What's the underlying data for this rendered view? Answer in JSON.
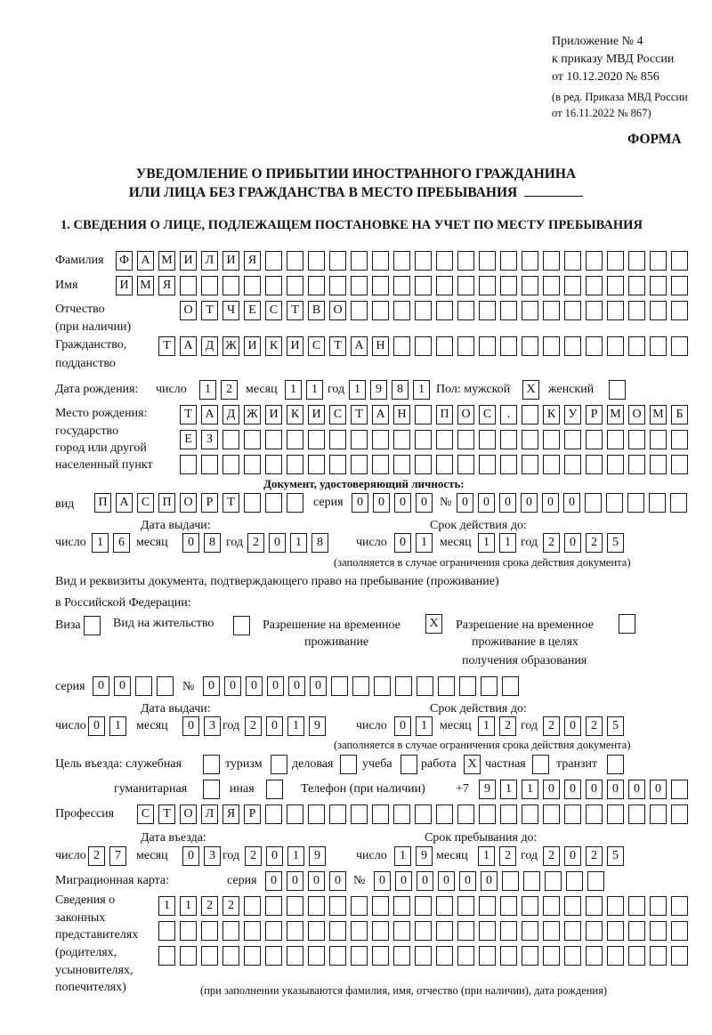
{
  "header": {
    "appendix": [
      "Приложение № 4",
      "к приказу МВД России",
      "от 10.12.2020 № 856"
    ],
    "revision": [
      "(в ред. Приказа МВД России",
      "от 16.11.2022 № 867)"
    ],
    "form_label": "ФОРМА",
    "title_line1": "УВЕДОМЛЕНИЕ О ПРИБЫТИИ ИНОСТРАННОГО ГРАЖДАНИНА",
    "title_line2": "ИЛИ ЛИЦА БЕЗ ГРАЖДАНСТВА В МЕСТО ПРЕБЫВАНИЯ",
    "section1": "1. СВЕДЕНИЯ О ЛИЦЕ, ПОДЛЕЖАЩЕМ ПОСТАНОВКЕ НА УЧЕТ ПО МЕСТУ ПРЕБЫВАНИЯ"
  },
  "labels": {
    "day": "число",
    "month": "месяц",
    "year": "год",
    "series": "серия",
    "number": "№",
    "note_validity": "(заполняется в случае ограничения срока действия документа)",
    "issue_date": "Дата выдачи:",
    "valid_until": "Срок действия до:"
  },
  "person": {
    "surname": {
      "label": "Фамилия",
      "cells": [
        "Ф",
        "А",
        "М",
        "И",
        "Л",
        "И",
        "Я",
        "",
        "",
        "",
        "",
        "",
        "",
        "",
        "",
        "",
        "",
        "",
        "",
        "",
        "",
        "",
        "",
        "",
        "",
        "",
        ""
      ]
    },
    "name": {
      "label": "Имя",
      "cells": [
        "И",
        "М",
        "Я",
        "",
        "",
        "",
        "",
        "",
        "",
        "",
        "",
        "",
        "",
        "",
        "",
        "",
        "",
        "",
        "",
        "",
        "",
        "",
        "",
        "",
        "",
        "",
        ""
      ]
    },
    "patronymic": {
      "label1": "Отчество",
      "label2": "(при наличии)",
      "cells": [
        "О",
        "Т",
        "Ч",
        "Е",
        "С",
        "Т",
        "В",
        "О",
        "",
        "",
        "",
        "",
        "",
        "",
        "",
        "",
        "",
        "",
        "",
        "",
        "",
        "",
        "",
        ""
      ]
    },
    "citizenship": {
      "label1": "Гражданство,",
      "label2": "подданство",
      "cells": [
        "Т",
        "А",
        "Д",
        "Ж",
        "И",
        "К",
        "И",
        "С",
        "Т",
        "А",
        "Н",
        "",
        "",
        "",
        "",
        "",
        "",
        "",
        "",
        "",
        "",
        "",
        "",
        "",
        ""
      ]
    },
    "birth_date": {
      "label": "Дата рождения:",
      "day": [
        "1",
        "2"
      ],
      "month": [
        "1",
        "1"
      ],
      "year": [
        "1",
        "9",
        "8",
        "1"
      ]
    },
    "sex": {
      "label": "Пол: мужской",
      "male": "X",
      "female_label": "женский",
      "female": ""
    },
    "birthplace": {
      "label": [
        "Место рождения:",
        "государство",
        "город или другой",
        "населенный пункт"
      ],
      "row1": [
        "Т",
        "А",
        "Д",
        "Ж",
        "И",
        "К",
        "И",
        "С",
        "Т",
        "А",
        "Н",
        "",
        "П",
        "О",
        "С",
        ".",
        "",
        "К",
        "У",
        "Р",
        "М",
        "О",
        "М",
        "Б"
      ],
      "row2": [
        "Е",
        "З",
        "",
        "",
        "",
        "",
        "",
        "",
        "",
        "",
        "",
        "",
        "",
        "",
        "",
        "",
        "",
        "",
        "",
        "",
        "",
        "",
        "",
        ""
      ],
      "row3": [
        "",
        "",
        "",
        "",
        "",
        "",
        "",
        "",
        "",
        "",
        "",
        "",
        "",
        "",
        "",
        "",
        "",
        "",
        "",
        "",
        "",
        "",
        "",
        ""
      ]
    }
  },
  "identity_doc": {
    "heading": "Документ, удостоверяющий личность:",
    "type_label": "вид",
    "type": [
      "П",
      "А",
      "С",
      "П",
      "О",
      "Р",
      "Т",
      "",
      "",
      ""
    ],
    "series": [
      "0",
      "0",
      "0",
      "0"
    ],
    "number": [
      "0",
      "0",
      "0",
      "0",
      "0",
      "0",
      "",
      "",
      "",
      "",
      ""
    ],
    "issue": {
      "day": [
        "1",
        "6"
      ],
      "month": [
        "0",
        "8"
      ],
      "year": [
        "2",
        "0",
        "1",
        "8"
      ]
    },
    "valid": {
      "day": [
        "0",
        "1"
      ],
      "month": [
        "1",
        "1"
      ],
      "year": [
        "2",
        "0",
        "2",
        "5"
      ]
    }
  },
  "stay_doc": {
    "heading1": "Вид и реквизиты документа, подтверждающего право на пребывание (проживание)",
    "heading2": "в Российской Федерации:",
    "visa_label": "Виза",
    "visa": "",
    "residence_label": "Вид на жительство",
    "residence": "",
    "trp_label1": "Разрешение на временное",
    "trp_label2": "проживание",
    "trp": "X",
    "trp_edu_label1": "Разрешение на временное",
    "trp_edu_label2": "проживание в целях",
    "trp_edu_label3": "получения образования",
    "trp_edu": "",
    "series": [
      "0",
      "0",
      "",
      ""
    ],
    "number": [
      "0",
      "0",
      "0",
      "0",
      "0",
      "0",
      "",
      "",
      "",
      "",
      "",
      "",
      "",
      "",
      ""
    ],
    "issue": {
      "day": [
        "0",
        "1"
      ],
      "month": [
        "0",
        "3"
      ],
      "year": [
        "2",
        "0",
        "1",
        "9"
      ]
    },
    "valid": {
      "day": [
        "0",
        "1"
      ],
      "month": [
        "1",
        "2"
      ],
      "year": [
        "2",
        "0",
        "2",
        "5"
      ]
    }
  },
  "purpose": {
    "label": "Цель въезда: служебная",
    "service": "",
    "tourism_label": "туризм",
    "tourism": "",
    "business_label": "деловая",
    "business": "",
    "study_label": "учеба",
    "study": "",
    "work_label": "работа",
    "work": "X",
    "private_label": "частная",
    "private": "",
    "transit_label": "транзит",
    "transit": "",
    "humanitarian_label": "гуманитарная",
    "humanitarian": "",
    "other_label": "иная",
    "other": ""
  },
  "phone": {
    "label": "Телефон (при наличии)",
    "prefix": "+7",
    "cells": [
      "9",
      "1",
      "1",
      "0",
      "0",
      "0",
      "0",
      "0",
      "0",
      ""
    ]
  },
  "profession": {
    "label": "Профессия",
    "cells": [
      "С",
      "Т",
      "О",
      "Л",
      "Я",
      "Р",
      "",
      "",
      "",
      "",
      "",
      "",
      "",
      "",
      "",
      "",
      "",
      "",
      "",
      "",
      "",
      "",
      "",
      "",
      "",
      ""
    ]
  },
  "entry": {
    "entry_label": "Дата въезда:",
    "stay_label": "Срок пребывания до:",
    "entry_date": {
      "day": [
        "2",
        "7"
      ],
      "month": [
        "0",
        "3"
      ],
      "year": [
        "2",
        "0",
        "1",
        "9"
      ]
    },
    "stay_until": {
      "day": [
        "1",
        "9"
      ],
      "month": [
        "1",
        "2"
      ],
      "year": [
        "2",
        "0",
        "2",
        "5"
      ]
    }
  },
  "migration_card": {
    "label": "Миграционная карта:",
    "series": [
      "0",
      "0",
      "0",
      "0"
    ],
    "number": [
      "0",
      "0",
      "0",
      "0",
      "0",
      "0",
      "",
      "",
      "",
      "",
      ""
    ]
  },
  "representatives": {
    "label": [
      "Сведения о",
      "законных",
      "представителях",
      "(родителях,",
      "усыновителях,",
      "попечителях)"
    ],
    "row1": [
      "1",
      "1",
      "2",
      "2",
      "",
      "",
      "",
      "",
      "",
      "",
      "",
      "",
      "",
      "",
      "",
      "",
      "",
      "",
      "",
      "",
      "",
      "",
      "",
      "",
      ""
    ],
    "row2": [
      "",
      "",
      "",
      "",
      "",
      "",
      "",
      "",
      "",
      "",
      "",
      "",
      "",
      "",
      "",
      "",
      "",
      "",
      "",
      "",
      "",
      "",
      "",
      "",
      ""
    ],
    "row3": [
      "",
      "",
      "",
      "",
      "",
      "",
      "",
      "",
      "",
      "",
      "",
      "",
      "",
      "",
      "",
      "",
      "",
      "",
      "",
      "",
      "",
      "",
      "",
      "",
      ""
    ],
    "note": "(при заполнении указываются фамилия, имя, отчество (при наличии), дата рождения)"
  }
}
